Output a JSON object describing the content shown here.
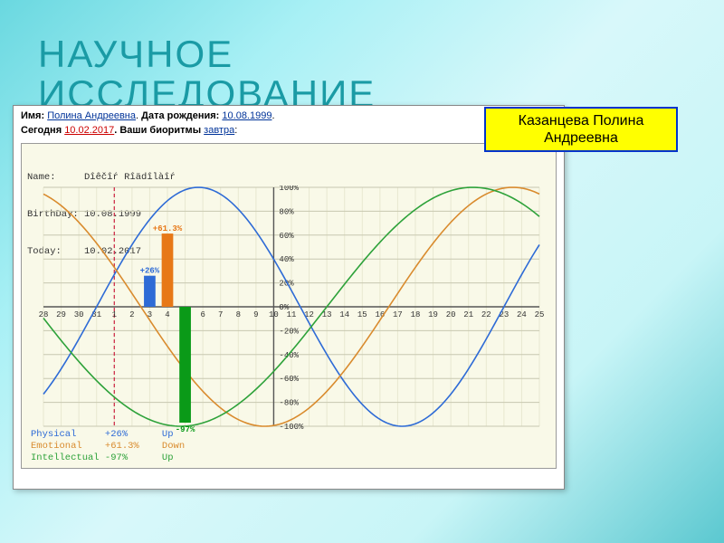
{
  "slide": {
    "title_line1": "НАУЧНОЕ",
    "title_line2": "ИССЛЕДОВАНИЕ",
    "title_color": "#1a9ba5",
    "title_fontsize": 42
  },
  "badge": {
    "line1": "Казанцева Полина",
    "line2": "Андреевна",
    "bg": "#ffff00",
    "border": "#0033cc"
  },
  "header": {
    "name_label": "Имя: ",
    "name_value": "Полина Андреевна",
    "dot1": ". ",
    "birth_label": "Дата рождения: ",
    "birth_value": "10.08.1999",
    "dot2": ".",
    "today_label": "Сегодня ",
    "today_value": "10.02.2017",
    "bio_text": ". Ваши биоритмы ",
    "tomorrow": "завтра",
    "colon": ":"
  },
  "meta": {
    "line1": "Name:     Dîêčîŕ Rîädîlàîŕ",
    "line2": "BirthDay: 10.08.1999",
    "line3": "Today:    10.02.2017"
  },
  "chart": {
    "bg": "#f9f9e8",
    "grid_minor": "#e8e8d0",
    "grid_major": "#c8c8b0",
    "axis_color": "#555555",
    "x_days": [
      28,
      29,
      30,
      31,
      1,
      2,
      3,
      4,
      5,
      6,
      7,
      8,
      9,
      10,
      11,
      12,
      13,
      14,
      15,
      16,
      17,
      18,
      19,
      20,
      21,
      22,
      23,
      24,
      25
    ],
    "x_count": 29,
    "today_index": 13,
    "bar_today_index": 7,
    "marker_day_index": 4,
    "ylim": [
      -100,
      100
    ],
    "ytick_step": 20,
    "yticks": [
      100,
      80,
      60,
      40,
      20,
      0,
      -20,
      -40,
      -60,
      -80,
      -100
    ],
    "ytick_labels": [
      "100%",
      "80%",
      "60%",
      "40%",
      "20%",
      "0%",
      "-20%",
      "-40%",
      "-60%",
      "-80%",
      "-100%"
    ],
    "curves": {
      "physical": {
        "color": "#2e6bd6",
        "phase_days": 3.0,
        "period": 23,
        "width": 1.6
      },
      "emotional": {
        "color": "#d98b2e",
        "phase_days": -8.5,
        "period": 28,
        "width": 1.6
      },
      "intellectual": {
        "color": "#2ea23a",
        "phase_days": 16.0,
        "period": 33,
        "width": 1.6
      }
    },
    "bars": [
      {
        "name": "physical",
        "color": "#2e6bd6",
        "value": 26,
        "label": "+26%",
        "slot": 0
      },
      {
        "name": "emotional",
        "color": "#e77817",
        "value": 61.3,
        "label": "+61.3%",
        "slot": 1
      },
      {
        "name": "intellectual",
        "color": "#0a9a18",
        "value": -97,
        "label": "-97%",
        "slot": 2
      }
    ],
    "marker_line_color": "#cc2040",
    "x_label_font": 9,
    "y_label_font": 9
  },
  "legend": {
    "rows": [
      {
        "name": "Physical    ",
        "value": "+26%   ",
        "dir": "Up  ",
        "color": "#2e6bd6"
      },
      {
        "name": "Emotional   ",
        "value": "+61.3% ",
        "dir": "Down",
        "color": "#d98b2e"
      },
      {
        "name": "Intellectual",
        "value": "-97%   ",
        "dir": "Up  ",
        "color": "#2ea23a"
      }
    ]
  }
}
